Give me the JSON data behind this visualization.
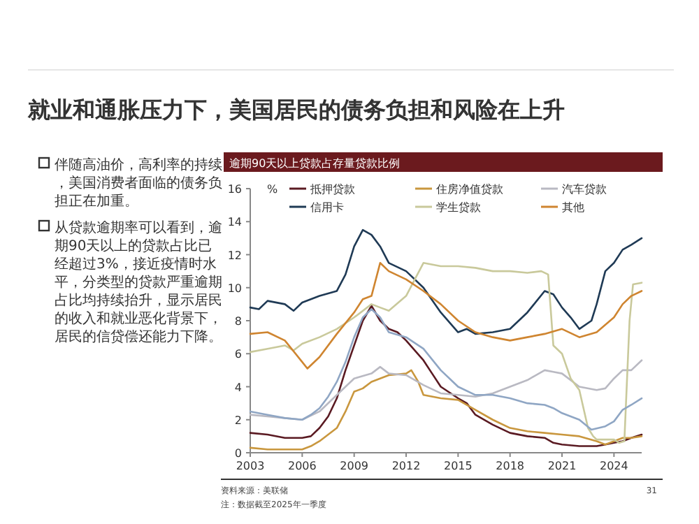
{
  "chart_data": {
    "type": "line",
    "title": "就业和通胀压力下，美国居民的债务负担和风险在上升",
    "subtitle": "逾期90天以上贷款占存量贷款比例",
    "ylabel": "%",
    "xlim": [
      2003,
      2025.6
    ],
    "xticks": [
      2003,
      2006,
      2009,
      2012,
      2015,
      2018,
      2021,
      2024
    ],
    "ylim": [
      0,
      16
    ],
    "yticks": [
      0,
      2,
      4,
      6,
      8,
      10,
      12,
      14,
      16
    ],
    "grid": false,
    "legend": "top",
    "line_style": "solid",
    "marker": "none",
    "series": [
      {
        "name": "抵押贷款",
        "color": "#5a1a22",
        "x": [
          2003,
          2004,
          2005,
          2006,
          2006.5,
          2007,
          2007.5,
          2008,
          2008.5,
          2009,
          2009.5,
          2010,
          2010.5,
          2011,
          2011.5,
          2012,
          2013,
          2013.5,
          2014,
          2015,
          2015.5,
          2016,
          2017,
          2018,
          2019,
          2020,
          2020.5,
          2021,
          2022,
          2023,
          2023.5,
          2024,
          2024.5,
          2025,
          2025.6
        ],
        "values": [
          1.2,
          1.1,
          0.9,
          0.9,
          1.0,
          1.5,
          2.2,
          3.3,
          5,
          6.5,
          8,
          8.9,
          8,
          7.5,
          7.3,
          6.8,
          5.6,
          4.8,
          4,
          3.3,
          3,
          2.3,
          1.7,
          1.2,
          1.0,
          0.9,
          0.6,
          0.5,
          0.4,
          0.4,
          0.5,
          0.6,
          0.7,
          0.9,
          1.1
        ]
      },
      {
        "name": "住房净值贷款",
        "color": "#c9973e",
        "x": [
          2003,
          2004,
          2005,
          2006,
          2006.5,
          2007,
          2008,
          2008.5,
          2009,
          2009.5,
          2010,
          2011,
          2012,
          2012.3,
          2012.7,
          2013,
          2014,
          2015,
          2016,
          2017,
          2018,
          2019,
          2020,
          2021,
          2022,
          2023,
          2023.5,
          2024,
          2024.5,
          2025,
          2025.6
        ],
        "values": [
          0.3,
          0.2,
          0.2,
          0.2,
          0.4,
          0.7,
          1.5,
          2.5,
          3.7,
          3.9,
          4.3,
          4.7,
          4.8,
          5.0,
          4.3,
          3.5,
          3.3,
          3.2,
          2.6,
          2.0,
          1.5,
          1.3,
          1.2,
          1.1,
          1.0,
          0.7,
          0.5,
          0.7,
          0.9,
          0.9,
          1.0
        ]
      },
      {
        "name": "汽车贷款",
        "color": "#b9b9c2",
        "x": [
          2003,
          2004,
          2005,
          2006,
          2007,
          2008,
          2009,
          2010,
          2010.5,
          2011,
          2012,
          2013,
          2014,
          2015,
          2016,
          2017,
          2018,
          2019,
          2020,
          2020.5,
          2021,
          2022,
          2023,
          2023.5,
          2024,
          2024.5,
          2025,
          2025.6
        ],
        "values": [
          2.3,
          2.2,
          2.1,
          2.0,
          2.5,
          3.5,
          4.5,
          4.8,
          5.2,
          4.8,
          4.7,
          4.1,
          3.6,
          3.5,
          3.4,
          3.6,
          4.0,
          4.4,
          5.0,
          4.9,
          4.8,
          4.0,
          3.8,
          3.9,
          4.5,
          5.0,
          5.0,
          5.6
        ]
      },
      {
        "name": "信用卡",
        "color": "#1f3a55",
        "x": [
          2003,
          2003.5,
          2004,
          2005,
          2005.5,
          2006,
          2007,
          2008,
          2008.5,
          2009,
          2009.5,
          2010,
          2010.5,
          2011,
          2012,
          2013,
          2014,
          2015,
          2015.5,
          2016,
          2017,
          2018,
          2019,
          2020,
          2020.5,
          2021,
          2021.5,
          2022,
          2022.7,
          2023,
          2023.5,
          2024,
          2024.5,
          2025,
          2025.6
        ],
        "values": [
          8.8,
          8.7,
          9.2,
          9.0,
          8.6,
          9.1,
          9.5,
          9.8,
          10.8,
          12.5,
          13.5,
          13.2,
          12.5,
          11.5,
          11,
          10,
          8.5,
          7.3,
          7.5,
          7.2,
          7.3,
          7.5,
          8.5,
          9.8,
          9.6,
          8.8,
          8.2,
          7.5,
          8.0,
          9.0,
          11.0,
          11.5,
          12.3,
          12.6,
          13.0
        ]
      },
      {
        "name": "学生贷款",
        "color": "#c9c99b",
        "x": [
          2003,
          2004,
          2005,
          2005.5,
          2006,
          2007,
          2008,
          2009,
          2010,
          2010.5,
          2011,
          2012,
          2012.5,
          2013,
          2014,
          2015,
          2016,
          2017,
          2018,
          2019,
          2019.8,
          2020.2,
          2020.5,
          2021,
          2021.5,
          2022,
          2022.5,
          2022.8,
          2023,
          2024,
          2024.3,
          2024.6,
          2024.9,
          2025.1,
          2025.6
        ],
        "values": [
          6.1,
          6.3,
          6.5,
          6.2,
          6.6,
          7.0,
          7.5,
          8.2,
          9.0,
          8.8,
          8.6,
          9.5,
          10.5,
          11.5,
          11.3,
          11.3,
          11.2,
          11.0,
          11.0,
          10.9,
          11.0,
          10.8,
          6.5,
          6.0,
          4.5,
          3.8,
          1.5,
          1.0,
          0.8,
          0.8,
          0.6,
          0.7,
          8.0,
          10.2,
          10.3
        ]
      },
      {
        "name": "其他",
        "color": "#cf8530",
        "x": [
          2003,
          2004,
          2005,
          2006,
          2006.3,
          2007,
          2008,
          2009,
          2009.5,
          2010,
          2010.5,
          2011,
          2012,
          2013,
          2014,
          2015,
          2016,
          2017,
          2018,
          2019,
          2020,
          2021,
          2022,
          2023,
          2024,
          2024.5,
          2025,
          2025.6
        ],
        "values": [
          7.2,
          7.3,
          6.8,
          5.5,
          5.1,
          5.8,
          7.2,
          8.5,
          9.3,
          9.5,
          11.5,
          11.0,
          10.5,
          9.8,
          9.0,
          8.0,
          7.3,
          7.0,
          6.8,
          7.0,
          7.2,
          7.5,
          7.0,
          7.3,
          8.2,
          9.0,
          9.5,
          9.8
        ]
      },
      {
        "color": "#8fa6c4",
        "x": [
          2003,
          2004,
          2005,
          2006,
          2006.5,
          2007,
          2007.5,
          2008,
          2008.5,
          2009,
          2009.5,
          2010,
          2010.5,
          2011,
          2012,
          2013,
          2014,
          2015,
          2016,
          2017,
          2018,
          2019,
          2020,
          2020.5,
          2021,
          2022,
          2022.7,
          2023.5,
          2024,
          2024.5,
          2025,
          2025.6
        ],
        "values": [
          2.5,
          2.3,
          2.1,
          2.0,
          2.3,
          2.7,
          3.4,
          4.3,
          5.5,
          7,
          8.2,
          8.7,
          8.2,
          7.3,
          7.0,
          6.3,
          5.0,
          4.0,
          3.5,
          3.5,
          3.3,
          3.0,
          2.9,
          2.7,
          2.4,
          2.0,
          1.4,
          1.6,
          1.9,
          2.6,
          2.9,
          3.3
        ]
      }
    ],
    "annotations": [
      "伴随高油价，高利率的持续，美国消费者面临的债务负担正在加重。",
      "从贷款逾期率可以看到，逾期90天以上的贷款占比已经超过3%，接近疫情时水平，分类型的贷款严重逾期占比均持续抬升，显示居民的收入和就业恶化背景下，居民的信贷偿还能力下降。",
      "资料来源：美联储",
      "注：数据截至2025年一季度",
      "31"
    ]
  }
}
